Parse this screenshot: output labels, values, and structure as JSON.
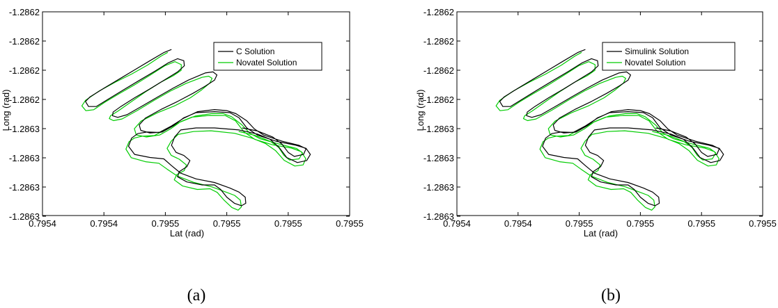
{
  "chart_data": [
    {
      "type": "line",
      "caption": "(a)",
      "xlabel": "Lat (rad)",
      "ylabel": "Long (rad)",
      "x_tick_labels": [
        "0.7954",
        "0.7954",
        "0.7955",
        "0.7955",
        "0.7955",
        "0.7955"
      ],
      "y_tick_labels": [
        "-1.2862",
        "-1.2862",
        "-1.2862",
        "-1.2862",
        "-1.2863",
        "-1.2863",
        "-1.2863",
        "-1.2863"
      ],
      "xlim": [
        0,
        1
      ],
      "ylim": [
        0,
        1
      ],
      "grid": false,
      "legend_position": "top-right",
      "series": [
        {
          "name": "C Solution",
          "color": "#000000"
        },
        {
          "name": "Novatel Solution",
          "color": "#00cc00"
        }
      ]
    },
    {
      "type": "line",
      "caption": "(b)",
      "xlabel": "Lat (rad)",
      "ylabel": "Long (rad)",
      "x_tick_labels": [
        "0.7954",
        "0.7954",
        "0.7955",
        "0.7955",
        "0.7955",
        "0.7955"
      ],
      "y_tick_labels": [
        "-1.2862",
        "-1.2862",
        "-1.2862",
        "-1.2862",
        "-1.2863",
        "-1.2863",
        "-1.2863",
        "-1.2863"
      ],
      "xlim": [
        0,
        1
      ],
      "ylim": [
        0,
        1
      ],
      "grid": false,
      "legend_position": "top-right",
      "series": [
        {
          "name": "Simulink Solution",
          "color": "#000000"
        },
        {
          "name": "Novatel Solution",
          "color": "#00cc00"
        }
      ]
    }
  ]
}
